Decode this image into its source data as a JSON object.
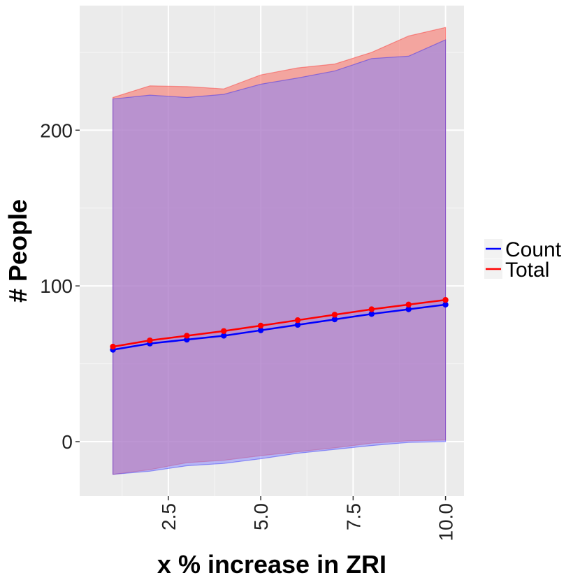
{
  "chart_data": {
    "type": "line",
    "title": "",
    "xlabel": "x % increase in ZRI",
    "ylabel": "# People",
    "x": [
      1,
      2,
      3,
      4,
      5,
      6,
      7,
      8,
      9,
      10
    ],
    "xlim": [
      0.1,
      10.5
    ],
    "ylim": [
      -35,
      280
    ],
    "x_ticks": [
      2.5,
      5.0,
      7.5,
      10.0
    ],
    "x_tick_labels": [
      "2.5",
      "5.0",
      "7.5",
      "10.0"
    ],
    "x_minor_ticks": [
      1.25,
      3.75,
      6.25,
      8.75
    ],
    "y_ticks": [
      0,
      100,
      200
    ],
    "y_tick_labels": [
      "0",
      "100",
      "200"
    ],
    "y_minor_ticks": [
      -50,
      50,
      150,
      250
    ],
    "grid": true,
    "legend_position": "right",
    "series": [
      {
        "name": "Count",
        "color": "#0000FF",
        "band_fill": "#8080FF",
        "values": [
          59,
          63,
          65.5,
          68,
          71.5,
          75,
          78.5,
          82,
          85,
          88
        ],
        "lower": [
          -21,
          -19,
          -15.5,
          -14,
          -11,
          -7.5,
          -5,
          -2.5,
          -0.5,
          0
        ],
        "upper": [
          220,
          222.5,
          221,
          223,
          229.5,
          233.5,
          238,
          246,
          247.5,
          258
        ]
      },
      {
        "name": "Total",
        "color": "#FF0000",
        "band_fill": "#F8766D",
        "values": [
          61,
          65,
          68,
          71,
          74.5,
          78,
          81.5,
          85,
          88,
          91
        ],
        "lower": [
          -21,
          -18,
          -13.5,
          -12,
          -9,
          -6.5,
          -4,
          -1,
          0.5,
          1
        ],
        "upper": [
          221,
          228.5,
          228,
          226.5,
          235.5,
          240,
          242.5,
          250,
          260.5,
          266
        ]
      }
    ]
  },
  "colors": {
    "panel_bg": "#EBEBEB",
    "grid": "#FFFFFF",
    "count": "#0000FF",
    "total": "#FF0000"
  }
}
